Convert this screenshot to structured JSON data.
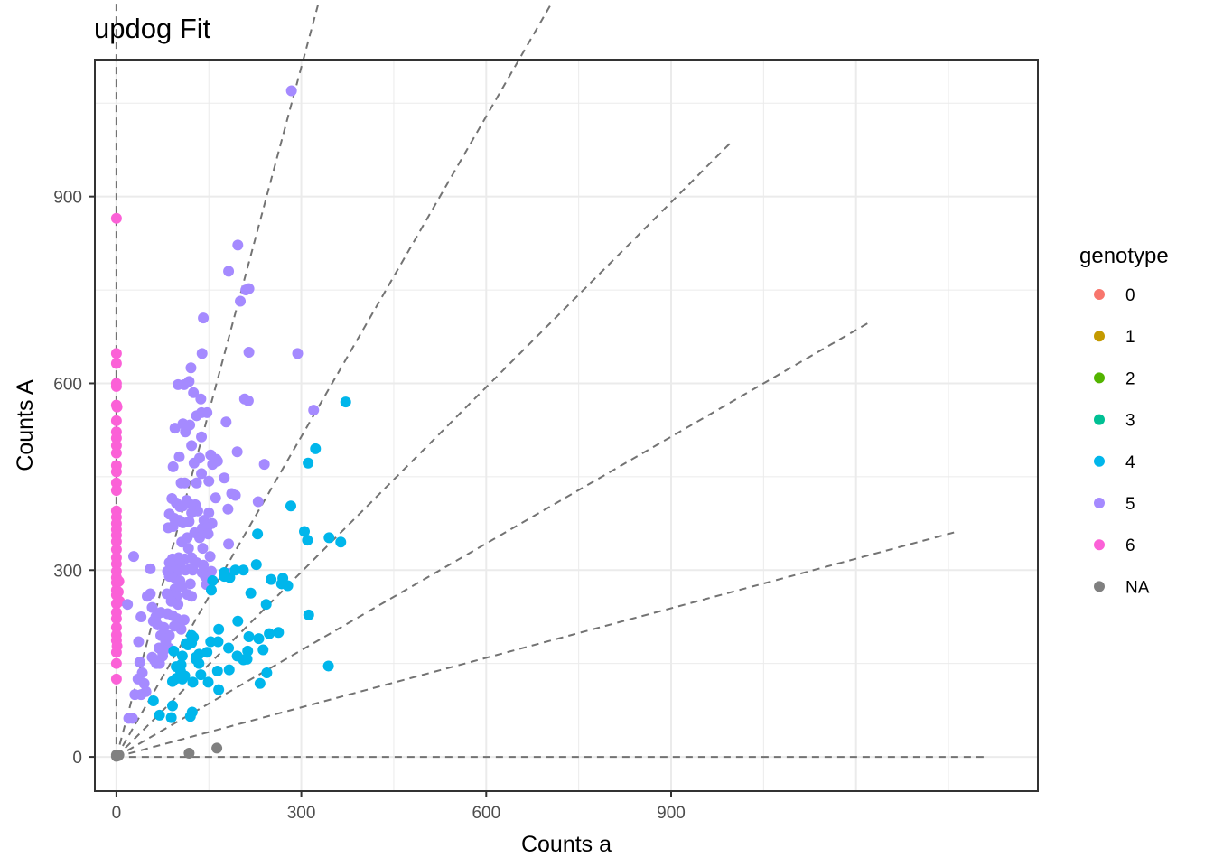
{
  "chart_data": {
    "type": "scatter",
    "title": "updog Fit",
    "xlabel": "Counts a",
    "ylabel": "Counts A",
    "xlim": [
      -35,
      1495
    ],
    "ylim": [
      -55,
      1120
    ],
    "xticks": [
      0,
      300,
      600,
      900
    ],
    "yticks": [
      0,
      300,
      600,
      900
    ],
    "x_ticks_labels": [
      "0",
      "300",
      "600",
      "900"
    ],
    "y_ticks_labels": [
      "0",
      "300",
      "600",
      "900"
    ],
    "grid": true,
    "legend": {
      "title": "genotype",
      "position": "right",
      "entries": [
        {
          "label": "0",
          "color": "#F8766D"
        },
        {
          "label": "1",
          "color": "#C49A00"
        },
        {
          "label": "2",
          "color": "#53B400"
        },
        {
          "label": "3",
          "color": "#00C094"
        },
        {
          "label": "4",
          "color": "#00B6EB"
        },
        {
          "label": "5",
          "color": "#A58AFF"
        },
        {
          "label": "6",
          "color": "#FB61D7"
        },
        {
          "label": "NA",
          "color": "#808080"
        }
      ]
    },
    "reference_lines": {
      "style": "dashed",
      "color": "#737373",
      "slopes_as_angle_fraction": [
        0,
        0.1667,
        0.3333,
        0.5,
        0.6667,
        0.8333,
        1.0
      ],
      "length": 1240
    },
    "series": [
      {
        "name": "6",
        "color": "#FB61D7",
        "points": [
          [
            0,
            865
          ],
          [
            0,
            648
          ],
          [
            0,
            632
          ],
          [
            0,
            600
          ],
          [
            0,
            595
          ],
          [
            0,
            565
          ],
          [
            1,
            562
          ],
          [
            0,
            540
          ],
          [
            0,
            522
          ],
          [
            0,
            512
          ],
          [
            0,
            500
          ],
          [
            0,
            488
          ],
          [
            0,
            468
          ],
          [
            0,
            458
          ],
          [
            0,
            440
          ],
          [
            0,
            428
          ],
          [
            0,
            395
          ],
          [
            0,
            385
          ],
          [
            0,
            375
          ],
          [
            0,
            365
          ],
          [
            0,
            356
          ],
          [
            0,
            346
          ],
          [
            0,
            333
          ],
          [
            0,
            320
          ],
          [
            0,
            310
          ],
          [
            0,
            298
          ],
          [
            0,
            288
          ],
          [
            0,
            280
          ],
          [
            4,
            282
          ],
          [
            0,
            268
          ],
          [
            0,
            260
          ],
          [
            3,
            265
          ],
          [
            0,
            246
          ],
          [
            5,
            250
          ],
          [
            0,
            232
          ],
          [
            0,
            222
          ],
          [
            0,
            208
          ],
          [
            0,
            196
          ],
          [
            0,
            187
          ],
          [
            1,
            178
          ],
          [
            0,
            168
          ],
          [
            0,
            150
          ],
          [
            0,
            125
          ]
        ]
      },
      {
        "name": "5",
        "color": "#A58AFF",
        "points": [
          [
            284,
            1070
          ],
          [
            197,
            822
          ],
          [
            182,
            780
          ],
          [
            210,
            750
          ],
          [
            215,
            752
          ],
          [
            201,
            732
          ],
          [
            141,
            705
          ],
          [
            294,
            648
          ],
          [
            139,
            648
          ],
          [
            121,
            625
          ],
          [
            110,
            598
          ],
          [
            100,
            598
          ],
          [
            118,
            603
          ],
          [
            214,
            572
          ],
          [
            137,
            575
          ],
          [
            125,
            585
          ],
          [
            147,
            553
          ],
          [
            138,
            553
          ],
          [
            320,
            557
          ],
          [
            130,
            548
          ],
          [
            95,
            528
          ],
          [
            108,
            535
          ],
          [
            112,
            522
          ],
          [
            119,
            533
          ],
          [
            178,
            538
          ],
          [
            138,
            514
          ],
          [
            135,
            480
          ],
          [
            162,
            478
          ],
          [
            196,
            490
          ],
          [
            153,
            485
          ],
          [
            156,
            470
          ],
          [
            122,
            500
          ],
          [
            126,
            472
          ],
          [
            102,
            482
          ],
          [
            92,
            466
          ],
          [
            138,
            455
          ],
          [
            130,
            440
          ],
          [
            111,
            440
          ],
          [
            105,
            440
          ],
          [
            150,
            443
          ],
          [
            193,
            420
          ],
          [
            175,
            448
          ],
          [
            187,
            423
          ],
          [
            161,
            416
          ],
          [
            114,
            412
          ],
          [
            117,
            408
          ],
          [
            90,
            415
          ],
          [
            103,
            402
          ],
          [
            97,
            408
          ],
          [
            108,
            403
          ],
          [
            128,
            405
          ],
          [
            132,
            395
          ],
          [
            122,
            392
          ],
          [
            150,
            392
          ],
          [
            181,
            398
          ],
          [
            142,
            380
          ],
          [
            155,
            375
          ],
          [
            118,
            378
          ],
          [
            108,
            376
          ],
          [
            102,
            380
          ],
          [
            94,
            383
          ],
          [
            86,
            390
          ],
          [
            84,
            368
          ],
          [
            92,
            370
          ],
          [
            127,
            360
          ],
          [
            139,
            367
          ],
          [
            142,
            363
          ],
          [
            147,
            368
          ],
          [
            135,
            352
          ],
          [
            115,
            352
          ],
          [
            106,
            345
          ],
          [
            149,
            358
          ],
          [
            182,
            342
          ],
          [
            140,
            335
          ],
          [
            117,
            335
          ],
          [
            122,
            320
          ],
          [
            111,
            318
          ],
          [
            101,
            320
          ],
          [
            94,
            315
          ],
          [
            86,
            312
          ],
          [
            88,
            305
          ],
          [
            97,
            302
          ],
          [
            83,
            298
          ],
          [
            86,
            290
          ],
          [
            94,
            288
          ],
          [
            103,
            283
          ],
          [
            120,
            303
          ],
          [
            130,
            312
          ],
          [
            152,
            322
          ],
          [
            141,
            308
          ],
          [
            154,
            298
          ],
          [
            183,
            295
          ],
          [
            28,
            322
          ],
          [
            55,
            302
          ],
          [
            91,
            318
          ],
          [
            103,
            310
          ],
          [
            102,
            300
          ],
          [
            112,
            300
          ],
          [
            124,
            300
          ],
          [
            139,
            296
          ],
          [
            144,
            290
          ],
          [
            146,
            277
          ],
          [
            120,
            278
          ],
          [
            107,
            273
          ],
          [
            95,
            270
          ],
          [
            98,
            258
          ],
          [
            115,
            261
          ],
          [
            122,
            258
          ],
          [
            100,
            245
          ],
          [
            89,
            250
          ],
          [
            82,
            262
          ],
          [
            58,
            240
          ],
          [
            50,
            258
          ],
          [
            55,
            262
          ],
          [
            18,
            245
          ],
          [
            40,
            225
          ],
          [
            60,
            218
          ],
          [
            64,
            225
          ],
          [
            72,
            232
          ],
          [
            83,
            230
          ],
          [
            91,
            227
          ],
          [
            98,
            222
          ],
          [
            102,
            212
          ],
          [
            110,
            220
          ],
          [
            105,
            205
          ],
          [
            94,
            210
          ],
          [
            86,
            195
          ],
          [
            77,
            208
          ],
          [
            67,
            212
          ],
          [
            72,
            195
          ],
          [
            80,
            185
          ],
          [
            69,
            175
          ],
          [
            75,
            168
          ],
          [
            85,
            175
          ],
          [
            75,
            162
          ],
          [
            65,
            150
          ],
          [
            62,
            155
          ],
          [
            58,
            160
          ],
          [
            70,
            150
          ],
          [
            36,
            185
          ],
          [
            38,
            152
          ],
          [
            42,
            135
          ],
          [
            35,
            125
          ],
          [
            45,
            118
          ],
          [
            48,
            105
          ],
          [
            40,
            100
          ],
          [
            30,
            100
          ],
          [
            26,
            62
          ],
          [
            20,
            62
          ],
          [
            215,
            650
          ],
          [
            230,
            410
          ],
          [
            208,
            575
          ],
          [
            240,
            470
          ],
          [
            164,
            475
          ]
        ]
      },
      {
        "name": "4",
        "color": "#00B6EB",
        "points": [
          [
            372,
            570
          ],
          [
            323,
            495
          ],
          [
            311,
            472
          ],
          [
            283,
            403
          ],
          [
            305,
            362
          ],
          [
            345,
            352
          ],
          [
            364,
            345
          ],
          [
            229,
            358
          ],
          [
            227,
            309
          ],
          [
            193,
            300
          ],
          [
            175,
            296
          ],
          [
            184,
            288
          ],
          [
            175,
            290
          ],
          [
            206,
            300
          ],
          [
            154,
            268
          ],
          [
            218,
            263
          ],
          [
            156,
            283
          ],
          [
            251,
            285
          ],
          [
            270,
            287
          ],
          [
            278,
            275
          ],
          [
            268,
            278
          ],
          [
            243,
            245
          ],
          [
            312,
            228
          ],
          [
            197,
            218
          ],
          [
            215,
            193
          ],
          [
            231,
            190
          ],
          [
            248,
            198
          ],
          [
            263,
            200
          ],
          [
            166,
            205
          ],
          [
            122,
            195
          ],
          [
            125,
            192
          ],
          [
            116,
            180
          ],
          [
            113,
            182
          ],
          [
            122,
            183
          ],
          [
            107,
            162
          ],
          [
            129,
            160
          ],
          [
            134,
            165
          ],
          [
            129,
            157
          ],
          [
            147,
            168
          ],
          [
            153,
            185
          ],
          [
            165,
            185
          ],
          [
            182,
            175
          ],
          [
            213,
            170
          ],
          [
            238,
            172
          ],
          [
            196,
            162
          ],
          [
            206,
            156
          ],
          [
            212,
            157
          ],
          [
            93,
            170
          ],
          [
            105,
            148
          ],
          [
            97,
            145
          ],
          [
            104,
            138
          ],
          [
            97,
            126
          ],
          [
            107,
            125
          ],
          [
            91,
            121
          ],
          [
            104,
            130
          ],
          [
            111,
            130
          ],
          [
            124,
            120
          ],
          [
            137,
            132
          ],
          [
            134,
            150
          ],
          [
            164,
            138
          ],
          [
            149,
            120
          ],
          [
            166,
            108
          ],
          [
            183,
            140
          ],
          [
            233,
            118
          ],
          [
            244,
            135
          ],
          [
            310,
            348
          ],
          [
            344,
            146
          ],
          [
            91,
            82
          ],
          [
            60,
            90
          ],
          [
            70,
            67
          ],
          [
            89,
            63
          ],
          [
            120,
            65
          ],
          [
            123,
            72
          ]
        ]
      },
      {
        "name": "NA",
        "color": "#808080",
        "points": [
          [
            163,
            14
          ],
          [
            118,
            6
          ],
          [
            0,
            3
          ],
          [
            1,
            3
          ],
          [
            2,
            3
          ],
          [
            3,
            2
          ],
          [
            4,
            3
          ],
          [
            0,
            1
          ]
        ]
      }
    ]
  }
}
